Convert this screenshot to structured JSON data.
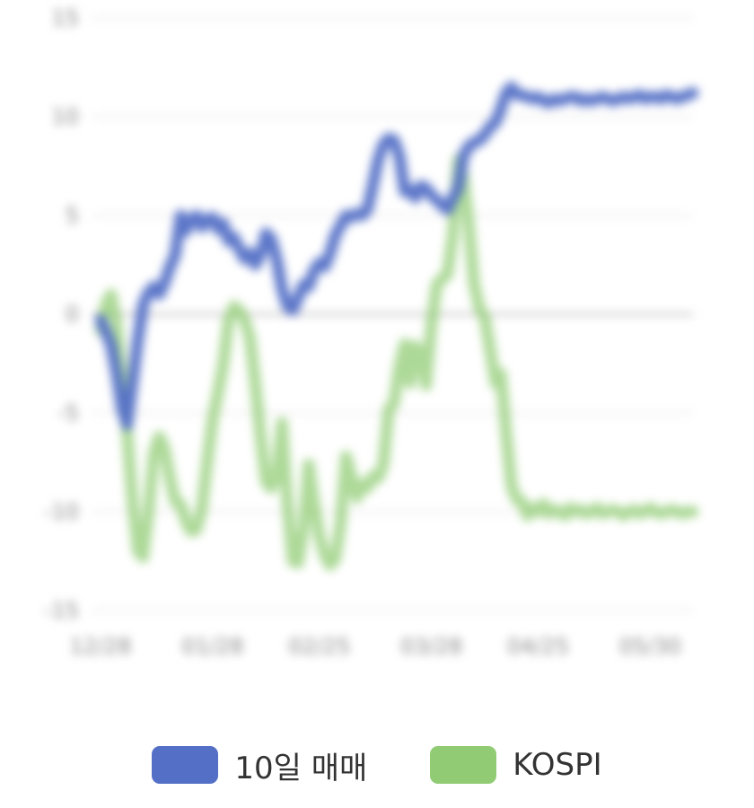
{
  "chart_data": {
    "type": "line",
    "ylim": [
      -15,
      15
    ],
    "yticks": [
      15,
      10,
      5,
      0,
      -5,
      -10,
      -15
    ],
    "ytick_labels": [
      "15",
      "10",
      "5",
      "0",
      "-5",
      "-10",
      "-15"
    ],
    "x_tick_labels": [
      "12/28",
      "01/28",
      "02/25",
      "03/28",
      "04/25",
      "05/30"
    ],
    "x_tick_index": [
      0,
      21,
      41,
      62,
      82,
      103
    ],
    "x_count": 112,
    "grid": true,
    "legend_position": "bottom",
    "series": [
      {
        "name": "10일 매매",
        "color": "#5470c6",
        "values": [
          -0.3,
          -0.9,
          -1.6,
          -3.0,
          -4.8,
          -5.6,
          -3.5,
          -1.3,
          0.5,
          1.1,
          1.4,
          1.0,
          1.6,
          2.4,
          3.0,
          5.0,
          4.2,
          4.8,
          5.0,
          4.4,
          4.8,
          4.9,
          4.3,
          4.6,
          3.7,
          3.9,
          3.3,
          2.8,
          3.1,
          2.5,
          3.0,
          4.1,
          3.8,
          2.8,
          1.3,
          0.4,
          0.2,
          0.8,
          1.5,
          1.4,
          2.2,
          2.6,
          2.4,
          3.1,
          4.0,
          4.5,
          5.0,
          4.9,
          5.1,
          5.0,
          5.3,
          6.5,
          7.8,
          8.6,
          8.9,
          8.8,
          8.0,
          6.2,
          6.3,
          5.9,
          6.5,
          6.4,
          6.0,
          5.8,
          5.5,
          5.3,
          5.9,
          6.4,
          8.0,
          8.5,
          8.7,
          8.8,
          9.1,
          9.5,
          9.7,
          10.4,
          11.2,
          11.5,
          11.1,
          11.1,
          11.0,
          10.9,
          11.0,
          10.8,
          10.7,
          10.9,
          10.8,
          10.9,
          11.0,
          11.0,
          10.8,
          10.9,
          10.8,
          10.9,
          11.0,
          10.9,
          10.8,
          10.9,
          11.0,
          10.9,
          11.0,
          11.1,
          10.9,
          11.0,
          11.0,
          10.9,
          11.1,
          11.0,
          10.9,
          11.0,
          11.1,
          11.2
        ]
      },
      {
        "name": "KOSPI",
        "color": "#91cc75",
        "values": [
          -0.8,
          0.5,
          1.0,
          -0.5,
          -3.2,
          -6.0,
          -9.5,
          -12.0,
          -12.3,
          -10.0,
          -7.0,
          -6.2,
          -6.8,
          -8.3,
          -9.5,
          -9.6,
          -10.5,
          -11.0,
          -10.9,
          -9.8,
          -7.5,
          -5.3,
          -4.0,
          -2.5,
          -0.3,
          0.4,
          0.2,
          -0.3,
          -1.2,
          -3.5,
          -6.2,
          -8.5,
          -8.8,
          -8.1,
          -5.5,
          -9.5,
          -12.5,
          -12.6,
          -11.0,
          -7.6,
          -9.5,
          -11.2,
          -12.2,
          -12.7,
          -12.4,
          -10.5,
          -7.2,
          -8.2,
          -9.3,
          -8.6,
          -8.8,
          -8.2,
          -8.3,
          -7.6,
          -4.8,
          -4.5,
          -2.6,
          -1.5,
          -3.5,
          -1.6,
          -2.0,
          -3.6,
          -0.5,
          1.5,
          1.8,
          2.0,
          4.0,
          7.8,
          7.0,
          4.5,
          1.5,
          0.3,
          -0.2,
          -1.8,
          -3.5,
          -3.0,
          -6.0,
          -8.7,
          -9.4,
          -9.5,
          -10.2,
          -9.8,
          -10.0,
          -9.6,
          -10.1,
          -9.9,
          -10.0,
          -10.2,
          -9.8,
          -10.0,
          -9.9,
          -10.1,
          -10.0,
          -9.8,
          -10.1,
          -10.0,
          -9.9,
          -10.0,
          -10.2,
          -10.0,
          -9.9,
          -10.1,
          -10.0,
          -9.8,
          -10.0,
          -10.1,
          -10.0,
          -9.9,
          -10.0,
          -10.1,
          -10.0,
          -10.0
        ]
      }
    ]
  },
  "legend": {
    "items": [
      {
        "label": "10일 매매",
        "color": "#5470c6"
      },
      {
        "label": "KOSPI",
        "color": "#91cc75"
      }
    ]
  }
}
